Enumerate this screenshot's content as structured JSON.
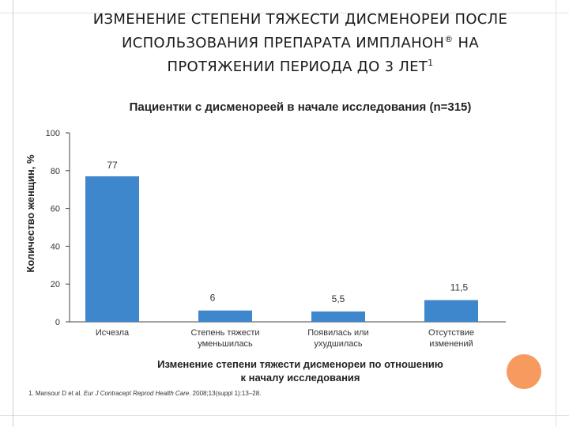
{
  "title": {
    "line1": "ИЗМЕНЕНИЕ СТЕПЕНИ ТЯЖЕСТИ ДИСМЕНОРЕИ ПОСЛЕ",
    "line2_main": "ИСПОЛЬЗОВАНИЯ ПРЕПАРАТА ИМПЛАНОН",
    "line2_mark": "®",
    "line2_end": " НА",
    "line3_main": "ПРОТЯЖЕНИИ ПЕРИОДА ДО 3 ЛЕТ",
    "line3_ref": "1"
  },
  "chart_data": {
    "type": "bar",
    "title": "Пациентки с дисменореей в начале исследования (n=315)",
    "ylabel": "Количество женщин, %",
    "xlabel_line1": "Изменение степени тяжести дисменореи по отношению",
    "xlabel_line2": "к началу исследования",
    "categories": [
      [
        "Исчезла"
      ],
      [
        "Степень тяжести",
        "уменьшилась"
      ],
      [
        "Появилась или",
        "ухудшилась"
      ],
      [
        "Отсутствие",
        "изменений"
      ]
    ],
    "values": [
      77,
      6,
      5.5,
      11.5
    ],
    "value_labels": [
      "77",
      "6",
      "5,5",
      "11,5"
    ],
    "ylim": [
      0,
      100
    ],
    "yticks": [
      0,
      20,
      40,
      60,
      80,
      100
    ],
    "bar_color": "#3f87cc",
    "grid": false
  },
  "footnote": {
    "lead": "1. Mansour D et al. ",
    "journal": "Eur J Contracept Reprod Health Care",
    "rest": ". 2008;13(suppl 1):13–28."
  },
  "colors": {
    "accent_dot": "#f79a5f"
  }
}
